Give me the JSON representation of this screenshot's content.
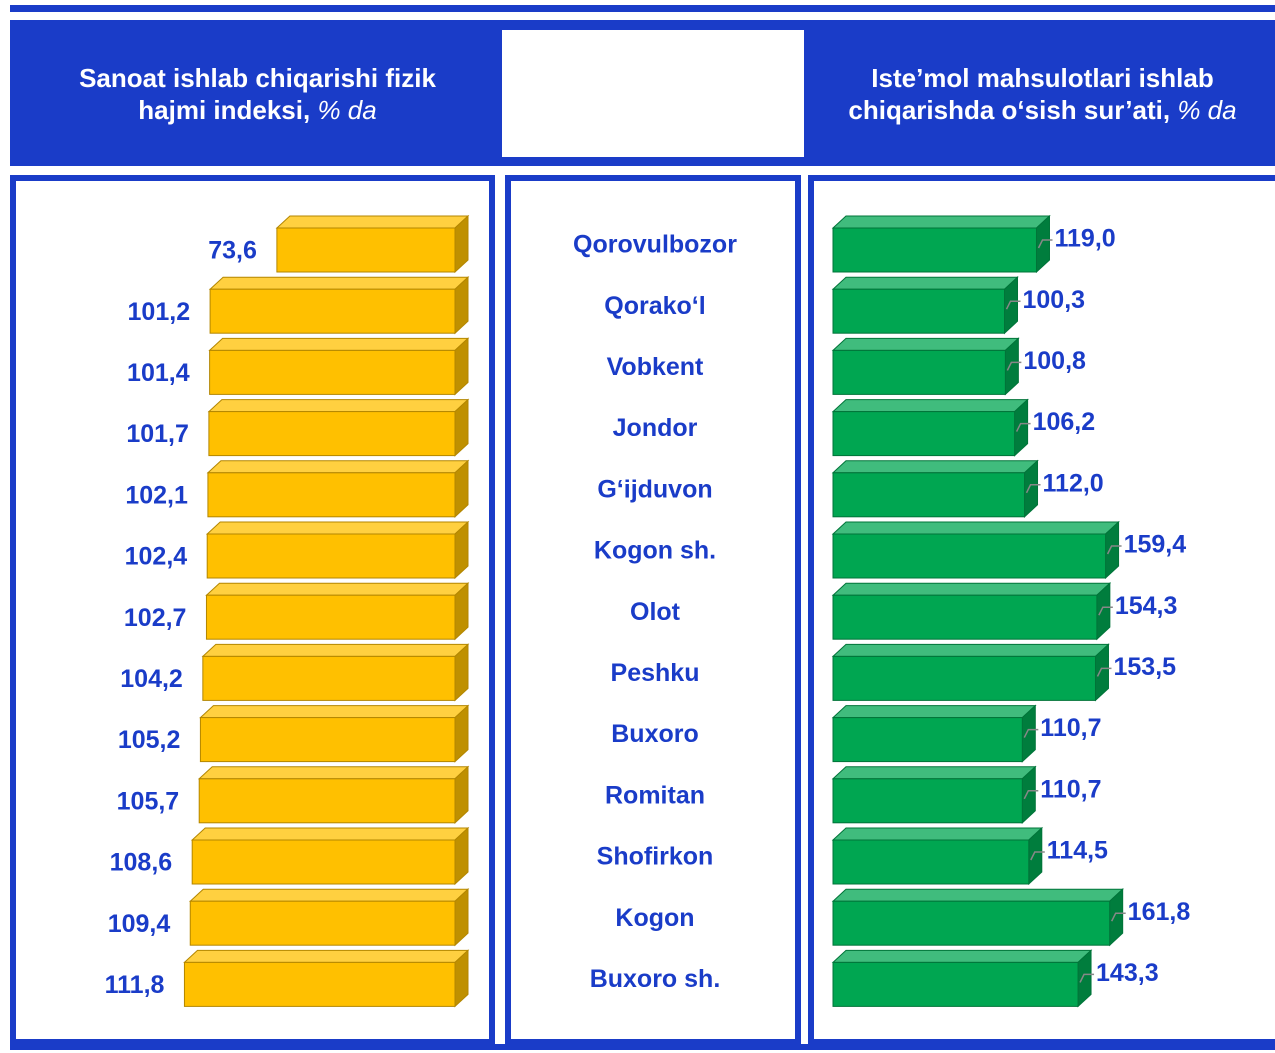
{
  "chart_data": [
    {
      "type": "bar",
      "title": "Sanoat ishlab chiqarishi fizik hajmi indeksi,",
      "unit": "% da",
      "color": "#FFC000",
      "categories": [
        "Qorovulbozor",
        "Qorako‘l",
        "Vobkent",
        "Jondor",
        "G‘ijduvon",
        "Kogon sh.",
        "Olot",
        "Peshku",
        "Buxoro",
        "Romitan",
        "Shofirkon",
        "Kogon",
        "Buxoro sh."
      ],
      "values": [
        73.6,
        101.2,
        101.4,
        101.7,
        102.1,
        102.4,
        102.7,
        104.2,
        105.2,
        105.7,
        108.6,
        109.4,
        111.8
      ],
      "value_labels": [
        "73,6",
        "101,2",
        "101,4",
        "101,7",
        "102,1",
        "102,4",
        "102,7",
        "104,2",
        "105,2",
        "105,7",
        "108,6",
        "109,4",
        "111,8"
      ]
    },
    {
      "type": "bar",
      "title": "Iste’mol mahsulotlari ishlab chiqarishda o‘sish sur’ati,",
      "unit": "% da",
      "color": "#00A651",
      "values": [
        119.0,
        100.3,
        100.8,
        106.2,
        112.0,
        159.4,
        154.3,
        153.5,
        110.7,
        110.7,
        114.5,
        161.8,
        143.3
      ],
      "value_labels": [
        "119,0",
        "100,3",
        "100,8",
        "106,2",
        "112,0",
        "159,4",
        "154,3",
        "153,5",
        "110,7",
        "110,7",
        "114,5",
        "161,8",
        "143,3"
      ]
    }
  ]
}
